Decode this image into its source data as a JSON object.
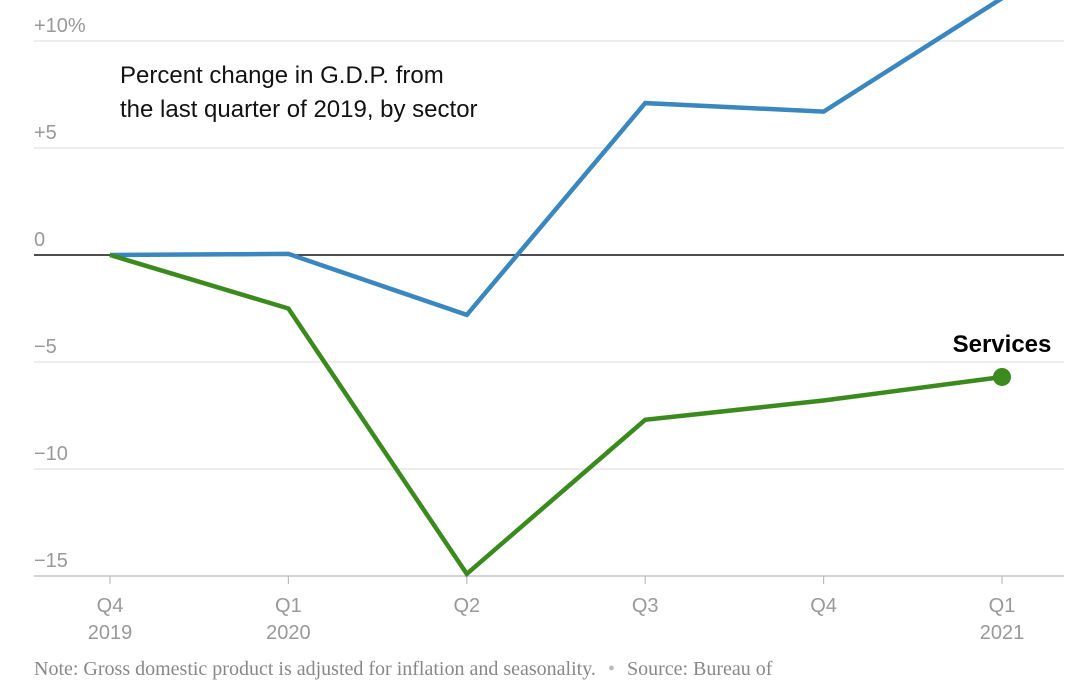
{
  "chart_data": {
    "type": "line",
    "subtitle_lines": [
      "Percent change in G.D.P. from",
      "the last quarter of 2019, by sector"
    ],
    "x": [
      {
        "quarter": "Q4",
        "year": "2019"
      },
      {
        "quarter": "Q1",
        "year": "2020"
      },
      {
        "quarter": "Q2",
        "year": ""
      },
      {
        "quarter": "Q3",
        "year": ""
      },
      {
        "quarter": "Q4",
        "year": ""
      },
      {
        "quarter": "Q1",
        "year": "2021"
      }
    ],
    "y_ticks": [
      {
        "value": 10,
        "label": "+10%"
      },
      {
        "value": 5,
        "label": "+5"
      },
      {
        "value": 0,
        "label": "0"
      },
      {
        "value": -5,
        "label": "−5"
      },
      {
        "value": -10,
        "label": "−10"
      },
      {
        "value": -15,
        "label": "−15"
      }
    ],
    "ylim": [
      -15,
      11.5
    ],
    "grid": true,
    "series": [
      {
        "color": "#3a87c0",
        "values": [
          0,
          0.05,
          -2.8,
          7.1,
          6.7,
          12.0
        ]
      },
      {
        "name": "Services",
        "color": "#3a8a1d",
        "values": [
          0,
          -2.5,
          -14.9,
          -7.7,
          -6.8,
          -5.7
        ]
      }
    ]
  },
  "footer": {
    "note": "Note: Gross domestic product is adjusted for inflation and seasonality.",
    "source": "Source: Bureau of"
  }
}
